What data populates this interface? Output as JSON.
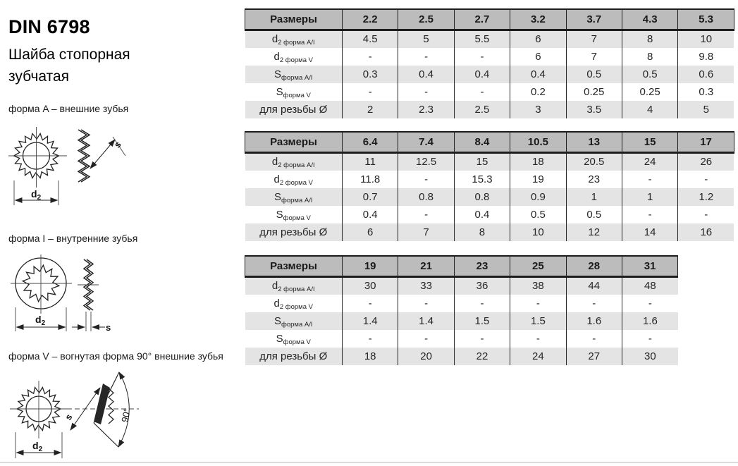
{
  "header": {
    "title": "DIN 6798",
    "subtitle_line1": "Шайба стопорная",
    "subtitle_line2": "зубчатая"
  },
  "forms": [
    {
      "label": "форма A – внешние зубья"
    },
    {
      "label": "форма I – внутренние зубья"
    },
    {
      "label": "форма V – вогнутая форма 90° внешние зубья"
    }
  ],
  "drawing_labels": {
    "d_main": "d",
    "d_sub": "2",
    "s": "s",
    "angle": "90°"
  },
  "tables": [
    {
      "header": [
        "Размеры",
        "2.2",
        "2.5",
        "2.7",
        "3.2",
        "3.7",
        "4.3",
        "5.3"
      ],
      "rows": [
        {
          "label_main": "d",
          "label_sub": "2 форма A/I",
          "values": [
            "4.5",
            "5",
            "5.5",
            "6",
            "7",
            "8",
            "10"
          ]
        },
        {
          "label_main": "d",
          "label_sub": "2 форма V",
          "values": [
            "-",
            "-",
            "-",
            "6",
            "7",
            "8",
            "9.8"
          ]
        },
        {
          "label_main": "S",
          "label_sub": "форма A/I",
          "values": [
            "0.3",
            "0.4",
            "0.4",
            "0.4",
            "0.5",
            "0.5",
            "0.6"
          ]
        },
        {
          "label_main": "S",
          "label_sub": "форма V",
          "values": [
            "-",
            "-",
            "-",
            "0.2",
            "0.25",
            "0.25",
            "0.3"
          ]
        },
        {
          "label_main": "для резьбы Ø",
          "label_sub": "",
          "values": [
            "2",
            "2.3",
            "2.5",
            "3",
            "3.5",
            "4",
            "5"
          ]
        }
      ]
    },
    {
      "header": [
        "Размеры",
        "6.4",
        "7.4",
        "8.4",
        "10.5",
        "13",
        "15",
        "17"
      ],
      "rows": [
        {
          "label_main": "d",
          "label_sub": "2 форма A/I",
          "values": [
            "11",
            "12.5",
            "15",
            "18",
            "20.5",
            "24",
            "26"
          ]
        },
        {
          "label_main": "d",
          "label_sub": "2 форма V",
          "values": [
            "11.8",
            "-",
            "15.3",
            "19",
            "23",
            "-",
            "-"
          ]
        },
        {
          "label_main": "S",
          "label_sub": "форма A/I",
          "values": [
            "0.7",
            "0.8",
            "0.8",
            "0.9",
            "1",
            "1",
            "1.2"
          ]
        },
        {
          "label_main": "S",
          "label_sub": "форма V",
          "values": [
            "0.4",
            "-",
            "0.4",
            "0.5",
            "0.5",
            "-",
            "-"
          ]
        },
        {
          "label_main": "для резьбы Ø",
          "label_sub": "",
          "values": [
            "6",
            "7",
            "8",
            "10",
            "12",
            "14",
            "16"
          ]
        }
      ]
    },
    {
      "header": [
        "Размеры",
        "19",
        "21",
        "23",
        "25",
        "28",
        "31"
      ],
      "rows": [
        {
          "label_main": "d",
          "label_sub": "2 форма A/I",
          "values": [
            "30",
            "33",
            "36",
            "38",
            "44",
            "48"
          ]
        },
        {
          "label_main": "d",
          "label_sub": "2 форма V",
          "values": [
            "-",
            "-",
            "-",
            "-",
            "-",
            "-"
          ]
        },
        {
          "label_main": "S",
          "label_sub": "форма A/I",
          "values": [
            "1.4",
            "1.4",
            "1.5",
            "1.5",
            "1.6",
            "1.6"
          ]
        },
        {
          "label_main": "S",
          "label_sub": "форма V",
          "values": [
            "-",
            "-",
            "-",
            "-",
            "-",
            "-"
          ]
        },
        {
          "label_main": "для резьбы Ø",
          "label_sub": "",
          "values": [
            "18",
            "20",
            "22",
            "24",
            "27",
            "30"
          ]
        }
      ]
    }
  ]
}
